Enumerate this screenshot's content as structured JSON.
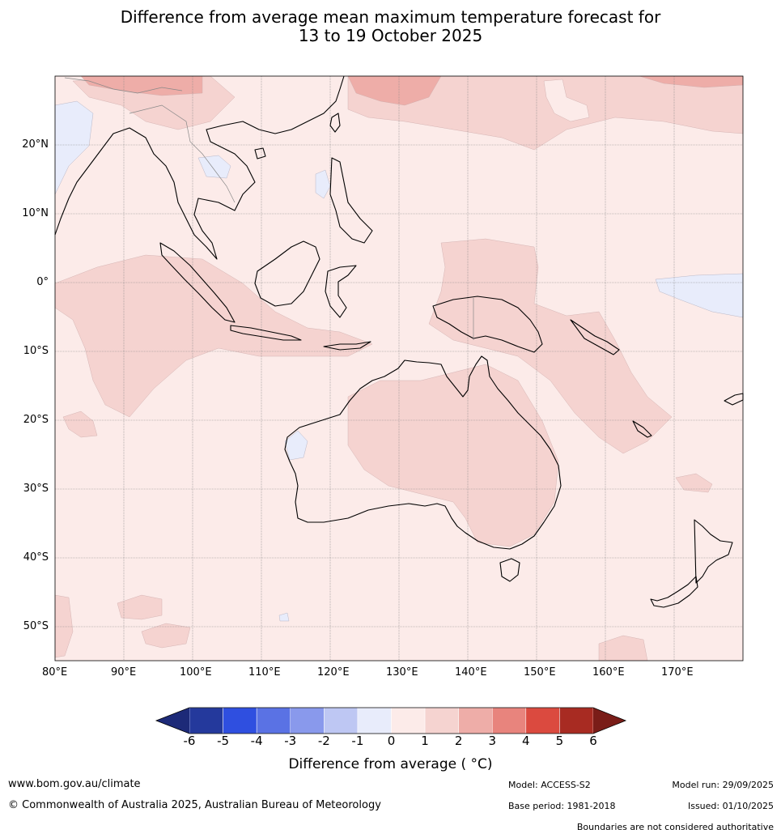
{
  "title_line1": "Difference from average mean maximum temperature forecast for",
  "title_line2": "13 to 19 October 2025",
  "lat_labels": [
    "20°N",
    "10°N",
    "0°",
    "10°S",
    "20°S",
    "30°S",
    "40°S",
    "50°S"
  ],
  "lat_values": [
    20,
    10,
    0,
    -10,
    -20,
    -30,
    -40,
    -50
  ],
  "lon_labels": [
    "80°E",
    "90°E",
    "100°E",
    "110°E",
    "120°E",
    "130°E",
    "140°E",
    "150°E",
    "160°E",
    "170°E"
  ],
  "lon_values": [
    80,
    90,
    100,
    110,
    120,
    130,
    140,
    150,
    160,
    170
  ],
  "map_extent": {
    "lon_min": 80,
    "lon_max": 180,
    "lat_min": -55,
    "lat_max": 30
  },
  "colorbar": {
    "ticks": [
      "-6",
      "-5",
      "-4",
      "-3",
      "-2",
      "-1",
      "0",
      "1",
      "2",
      "3",
      "4",
      "5",
      "6"
    ],
    "colors": [
      "#24399c",
      "#2f4fe0",
      "#5a72e4",
      "#8999ec",
      "#bec7f3",
      "#e8ecfb",
      "#fcebe9",
      "#f5d3d0",
      "#eeada8",
      "#e8847d",
      "#db4a3f",
      "#a82b22"
    ],
    "under_color": "#1d2a78",
    "over_color": "#7a1d18",
    "label": "Difference from average ( °C)"
  },
  "footer": {
    "website": "www.bom.gov.au/climate",
    "copyright": "© Commonwealth of Australia 2025, Australian Bureau of Meteorology",
    "model": "Model: ACCESS-S2",
    "model_run": "Model run: 29/09/2025",
    "base_period": "Base period: 1981-2018",
    "issued": "Issued: 01/10/2025",
    "disclaimer": "Boundaries are not considered authoritative"
  }
}
